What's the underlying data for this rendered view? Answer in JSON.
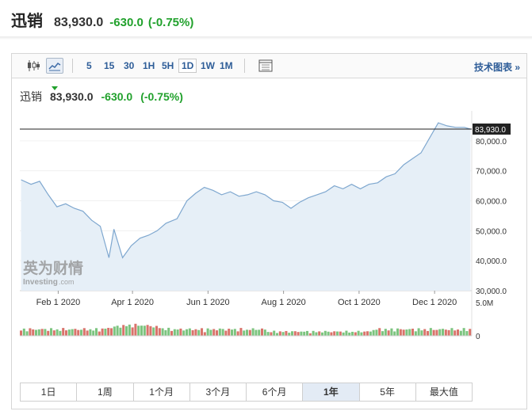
{
  "header": {
    "name": "迅销",
    "price": "83,930.0",
    "change": "-630.0",
    "change_pct": "(-0.75%)"
  },
  "toolbar": {
    "intervals": [
      "5",
      "15",
      "30",
      "1H",
      "5H",
      "1D",
      "1W",
      "1M"
    ],
    "selected_interval": "1D",
    "tech_chart": "技术图表 »",
    "icons": [
      "candlestick-icon",
      "line-chart-icon",
      "table-icon"
    ]
  },
  "quote": {
    "name": "迅销",
    "price": "83,930.0",
    "change": "-630.0",
    "change_pct": "(-0.75%)"
  },
  "watermark": {
    "brand": "英为财情",
    "sub": "Investing",
    "domain": ".com"
  },
  "colors": {
    "up": "#21a12c",
    "down": "#c0392b",
    "line": "#7ea7cf",
    "area": "#e6eff7",
    "link": "#2e5d98"
  },
  "chart_data": {
    "type": "area",
    "x": [
      "2020-01-02",
      "2020-01-10",
      "2020-01-17",
      "2020-01-24",
      "2020-01-31",
      "2020-02-07",
      "2020-02-14",
      "2020-02-21",
      "2020-02-28",
      "2020-03-06",
      "2020-03-13",
      "2020-03-17",
      "2020-03-24",
      "2020-03-31",
      "2020-04-07",
      "2020-04-14",
      "2020-04-21",
      "2020-04-28",
      "2020-05-07",
      "2020-05-15",
      "2020-05-22",
      "2020-05-29",
      "2020-06-05",
      "2020-06-12",
      "2020-06-19",
      "2020-06-26",
      "2020-07-03",
      "2020-07-10",
      "2020-07-17",
      "2020-07-24",
      "2020-07-31",
      "2020-08-07",
      "2020-08-14",
      "2020-08-21",
      "2020-08-28",
      "2020-09-04",
      "2020-09-11",
      "2020-09-18",
      "2020-09-25",
      "2020-10-02",
      "2020-10-09",
      "2020-10-16",
      "2020-10-23",
      "2020-10-30",
      "2020-11-06",
      "2020-11-13",
      "2020-11-20",
      "2020-11-27",
      "2020-12-04",
      "2020-12-11",
      "2020-12-18",
      "2020-12-25",
      "2020-12-30"
    ],
    "values": [
      67000,
      65500,
      66500,
      62000,
      58000,
      59000,
      57500,
      56500,
      53500,
      51500,
      41000,
      50500,
      41000,
      45000,
      47500,
      48500,
      50000,
      52500,
      54000,
      60000,
      62500,
      64500,
      63500,
      62000,
      63000,
      61500,
      62000,
      63000,
      62000,
      60000,
      59500,
      57500,
      59500,
      61000,
      62000,
      63000,
      65000,
      64000,
      65500,
      64000,
      65500,
      66000,
      68000,
      69000,
      72000,
      74000,
      76000,
      81000,
      86000,
      85000,
      84500,
      84500,
      83930
    ],
    "last_value_label": "83,930.0",
    "ylim": [
      30000,
      90000
    ],
    "y_ticks": [
      30000,
      40000,
      50000,
      60000,
      70000,
      80000
    ],
    "y_tick_labels": [
      "30,000.0",
      "40,000.0",
      "50,000.0",
      "60,000.0",
      "70,000.0",
      "80,000.0"
    ],
    "x_ticks": [
      "2020-02-01",
      "2020-04-01",
      "2020-06-01",
      "2020-08-01",
      "2020-10-01",
      "2020-12-01"
    ],
    "x_tick_labels": [
      "Feb 1 2020",
      "Apr 1 2020",
      "Jun 1 2020",
      "Aug 1 2020",
      "Oct 1 2020",
      "Dec 1 2020"
    ],
    "volume": {
      "ylim": [
        0,
        5000000
      ],
      "tick_labels": [
        "5.0M",
        "0"
      ],
      "bars": 150
    }
  },
  "range_tabs": {
    "labels": [
      "1日",
      "1周",
      "1个月",
      "3个月",
      "6个月",
      "1年",
      "5年",
      "最大值"
    ],
    "selected": "1年"
  }
}
